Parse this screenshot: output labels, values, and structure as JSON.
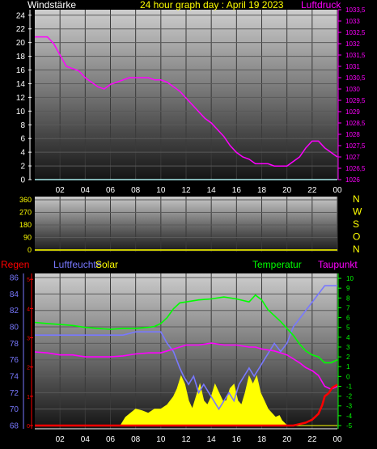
{
  "chart_data": [
    {
      "type": "line",
      "title": "24 hour graph day : April 19 2023",
      "left_label": "Windstärke",
      "right_label": "Luftdruck",
      "x_ticks": [
        "02",
        "04",
        "06",
        "08",
        "10",
        "12",
        "14",
        "16",
        "18",
        "20",
        "22",
        "00"
      ],
      "y_left_ticks": [
        "0",
        "2",
        "4",
        "6",
        "8",
        "10",
        "12",
        "14",
        "16",
        "18",
        "20",
        "22",
        "24"
      ],
      "y_left_lim": [
        0,
        24.8
      ],
      "y_right_ticks": [
        "1026",
        "1026,5",
        "1027",
        "1027,5",
        "1028",
        "1028,5",
        "1029",
        "1029,5",
        "1030",
        "1030,5",
        "1031",
        "1031,5",
        "1032",
        "1032,5",
        "1033",
        "1033,5"
      ],
      "y_right_lim": [
        1026,
        1033.5
      ],
      "colors": {
        "left_label": "#ffffff",
        "title": "#ffff00",
        "right_label": "#ff00ff",
        "axis_left": "#ffffff",
        "axis_right": "#ff00ff",
        "pressure": "#ff00ff",
        "wind": "#00c8c8"
      },
      "series": [
        {
          "name": "Luftdruck",
          "axis": "right",
          "x": [
            0,
            0.5,
            1,
            1.5,
            2,
            2.5,
            3,
            3.5,
            4,
            4.5,
            5,
            5.5,
            6,
            6.5,
            7,
            7.5,
            8,
            8.5,
            9,
            9.5,
            10,
            10.5,
            11,
            11.5,
            12,
            12.5,
            13,
            13.5,
            14,
            14.5,
            15,
            15.5,
            16,
            16.5,
            17,
            17.5,
            18,
            18.5,
            19,
            19.5,
            20,
            20.5,
            21,
            21.5,
            22,
            22.5,
            23,
            23.5,
            24
          ],
          "y": [
            1032.3,
            1032.3,
            1032.3,
            1032.0,
            1031.5,
            1031.0,
            1030.9,
            1030.8,
            1030.5,
            1030.3,
            1030.1,
            1030.0,
            1030.2,
            1030.3,
            1030.4,
            1030.5,
            1030.5,
            1030.5,
            1030.5,
            1030.4,
            1030.4,
            1030.3,
            1030.1,
            1029.9,
            1029.6,
            1029.3,
            1029.0,
            1028.7,
            1028.5,
            1028.2,
            1027.9,
            1027.5,
            1027.2,
            1027.0,
            1026.9,
            1026.7,
            1026.7,
            1026.7,
            1026.6,
            1026.6,
            1026.6,
            1026.8,
            1027.0,
            1027.4,
            1027.7,
            1027.7,
            1027.4,
            1027.2,
            1027.0
          ]
        },
        {
          "name": "Windstärke",
          "axis": "left",
          "x": [
            0,
            24
          ],
          "y": [
            0,
            0
          ]
        }
      ]
    },
    {
      "type": "line",
      "y_left_ticks": [
        "0",
        "90",
        "180",
        "270",
        "360"
      ],
      "y_left_lim": [
        0,
        360
      ],
      "compass": [
        "N",
        "W",
        "S",
        "O",
        "N"
      ],
      "colors": {
        "axis_left": "#ffff00",
        "compass": "#ffff00",
        "baseline": "#c8c800"
      },
      "series": [
        {
          "name": "Windrichtung",
          "x": [
            0,
            24
          ],
          "y": [
            0,
            0
          ]
        }
      ]
    },
    {
      "type": "line",
      "labels": {
        "rain": "Regen",
        "humidity": "Luftfeuchte",
        "solar": "Solar",
        "temperature": "Temperatur",
        "dewpoint": "Taupunkt"
      },
      "colors": {
        "rain": "#ff0000",
        "humidity": "#7878ff",
        "solar": "#ffff00",
        "temperature": "#00ff00",
        "dewpoint": "#ff00ff"
      },
      "x_ticks": [
        "02",
        "04",
        "06",
        "08",
        "10",
        "12",
        "14",
        "16",
        "18",
        "20",
        "22",
        "00"
      ],
      "y_humidity_ticks": [
        "68",
        "70",
        "72",
        "74",
        "76",
        "78",
        "80",
        "82",
        "84",
        "86"
      ],
      "y_humidity_lim": [
        68,
        86.5
      ],
      "y_temp_ticks": [
        "-5",
        "-4",
        "-3",
        "-2",
        "-1",
        "0",
        "1",
        "2",
        "3",
        "4",
        "5",
        "6",
        "7",
        "8",
        "9",
        "10"
      ],
      "y_temp_lim": [
        -5,
        10.5
      ],
      "y_rain_ticks": [
        "0",
        "1",
        "2",
        "3",
        "4",
        "5"
      ],
      "y_rain_lim": [
        0,
        5.2
      ],
      "series": [
        {
          "name": "Temperatur",
          "axis": "temp",
          "x": [
            0,
            1,
            2,
            3,
            4,
            5,
            6,
            7,
            8,
            9,
            9.5,
            10,
            10.5,
            11,
            11.5,
            12,
            13,
            14,
            15,
            16,
            17,
            17.5,
            18,
            18.5,
            19,
            19.5,
            20,
            20.5,
            21,
            21.5,
            22,
            22.5,
            23,
            23.5,
            24
          ],
          "y": [
            5.5,
            5.4,
            5.3,
            5.2,
            5.0,
            4.9,
            4.8,
            4.9,
            4.9,
            5.0,
            5.1,
            5.4,
            6.0,
            6.9,
            7.5,
            7.6,
            7.8,
            7.9,
            8.1,
            7.9,
            7.6,
            8.3,
            7.8,
            6.8,
            6.2,
            5.6,
            4.9,
            4.2,
            3.3,
            2.6,
            2.2,
            2.0,
            1.4,
            1.4,
            1.7
          ]
        },
        {
          "name": "Taupunkt",
          "axis": "temp",
          "x": [
            0,
            1,
            2,
            3,
            4,
            5,
            6,
            7,
            8,
            9,
            10,
            10.5,
            11,
            11.5,
            12,
            13,
            14,
            15,
            16,
            17,
            17.5,
            18,
            18.5,
            19,
            19.5,
            20,
            20.5,
            21,
            21.5,
            22,
            22.5,
            23,
            23.5,
            24
          ],
          "y": [
            2.5,
            2.4,
            2.2,
            2.2,
            2.0,
            2.0,
            2.0,
            2.1,
            2.3,
            2.4,
            2.4,
            2.6,
            2.8,
            3.0,
            3.2,
            3.2,
            3.4,
            3.2,
            3.2,
            3.0,
            3.0,
            2.8,
            2.7,
            2.6,
            2.4,
            2.2,
            1.8,
            1.4,
            0.9,
            0.6,
            0.1,
            -1.0,
            -1.3,
            -1.0
          ]
        },
        {
          "name": "Luftfeuchte",
          "axis": "humidity",
          "x": [
            0,
            6,
            7,
            8,
            8.5,
            9,
            9.4,
            9.8,
            10,
            10.5,
            11,
            11.5,
            11.8,
            12.2,
            12.6,
            13,
            13.4,
            13.8,
            14.2,
            14.6,
            15,
            15.4,
            15.8,
            16.2,
            16.6,
            17,
            17.4,
            17.8,
            18.2,
            18.6,
            19,
            19.5,
            20,
            20.5,
            21,
            21.5,
            22,
            22.5,
            23,
            23.5,
            24
          ],
          "y": [
            79,
            79,
            79,
            79.4,
            79.4,
            79.4,
            79.4,
            79.4,
            79.4,
            78,
            77,
            75,
            74,
            73,
            74,
            72,
            73,
            72,
            71,
            70,
            71,
            72,
            71,
            73,
            74,
            75,
            74,
            75,
            76,
            77,
            78,
            77,
            78,
            80,
            81,
            82,
            83,
            84,
            85,
            85,
            85
          ]
        },
        {
          "name": "Solar",
          "axis": "humidity",
          "x": [
            0,
            6.8,
            7.2,
            7.6,
            8,
            8.5,
            9,
            9.5,
            10,
            10.5,
            11,
            11.3,
            11.6,
            11.9,
            12.2,
            12.5,
            12.8,
            13.1,
            13.4,
            13.7,
            14,
            14.3,
            14.6,
            14.9,
            15.2,
            15.5,
            15.8,
            16.1,
            16.4,
            16.7,
            17,
            17.3,
            17.6,
            17.9,
            18.2,
            18.5,
            18.8,
            19.1,
            19.4,
            19.6,
            20,
            24
          ],
          "y": [
            68,
            68,
            69,
            69.5,
            70,
            69.8,
            69.5,
            70,
            70,
            70.5,
            71.5,
            72.5,
            74,
            73,
            71,
            70,
            71.5,
            73,
            71,
            70.5,
            71.5,
            73,
            72,
            71,
            71,
            72.5,
            73,
            71,
            70.5,
            72,
            74,
            73,
            74,
            72,
            71,
            70,
            69.5,
            69,
            69.2,
            68.6,
            68,
            68
          ]
        },
        {
          "name": "Regen",
          "axis": "rain",
          "x": [
            0,
            20.5,
            21,
            21.5,
            22,
            22.5,
            22.8,
            23,
            23.3,
            23.6,
            24
          ],
          "y": [
            0,
            0,
            0.05,
            0.1,
            0.2,
            0.4,
            0.7,
            1.0,
            1.1,
            1.3,
            1.4
          ]
        }
      ]
    }
  ]
}
